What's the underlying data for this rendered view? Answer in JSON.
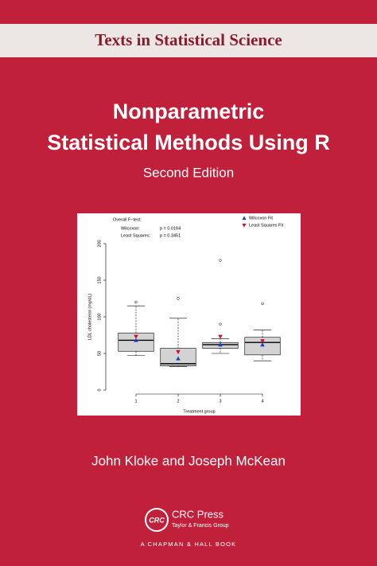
{
  "series_title": "Texts in Statistical Science",
  "title": [
    "Nonparametric",
    "Statistical Methods Using R"
  ],
  "edition": "Second Edition",
  "chart_data": {
    "type": "box",
    "annotation_heading": "Overall F−test:",
    "annotations": [
      {
        "label": "Wilcoxon:",
        "value": "p = 0.0164"
      },
      {
        "label": "Least Squares:",
        "value": "p = 0.3451"
      }
    ],
    "y_label": "LDL cholesterol (mg/dL)",
    "x_label": "Treatment group",
    "x": [
      1,
      2,
      3,
      4
    ],
    "xlim": [
      0.6,
      4.4
    ],
    "xticks": [
      1,
      2,
      3,
      4
    ],
    "ylim": [
      -10,
      215
    ],
    "yticks": [
      0,
      50,
      100,
      150,
      200
    ],
    "box_color": "#d3d3d3",
    "whisker_low": [
      47,
      32,
      50,
      40
    ],
    "q1": [
      53,
      33,
      57,
      48
    ],
    "median": [
      68,
      36,
      62,
      65
    ],
    "q3": [
      78,
      57,
      65,
      72
    ],
    "whisker_high": [
      115,
      98,
      70,
      82
    ],
    "outliers": [
      [
        120
      ],
      [
        125
      ],
      [
        90,
        177
      ],
      [
        118
      ]
    ],
    "series": [
      {
        "name": "Wilcoxon Fit",
        "color": "#1f3fbf",
        "marker": "triangle-up",
        "values": [
          68,
          43,
          62,
          62
        ]
      },
      {
        "name": "Least Squares Fit",
        "color": "#c8102e",
        "marker": "triangle-down",
        "values": [
          73,
          52,
          73,
          67
        ]
      }
    ]
  },
  "authors": "John Kloke and Joseph McKean",
  "publisher": {
    "logo": "CRC",
    "name": "CRC Press",
    "group": "Taylor & Francis Group",
    "imprint": "A CHAPMAN & HALL BOOK"
  }
}
